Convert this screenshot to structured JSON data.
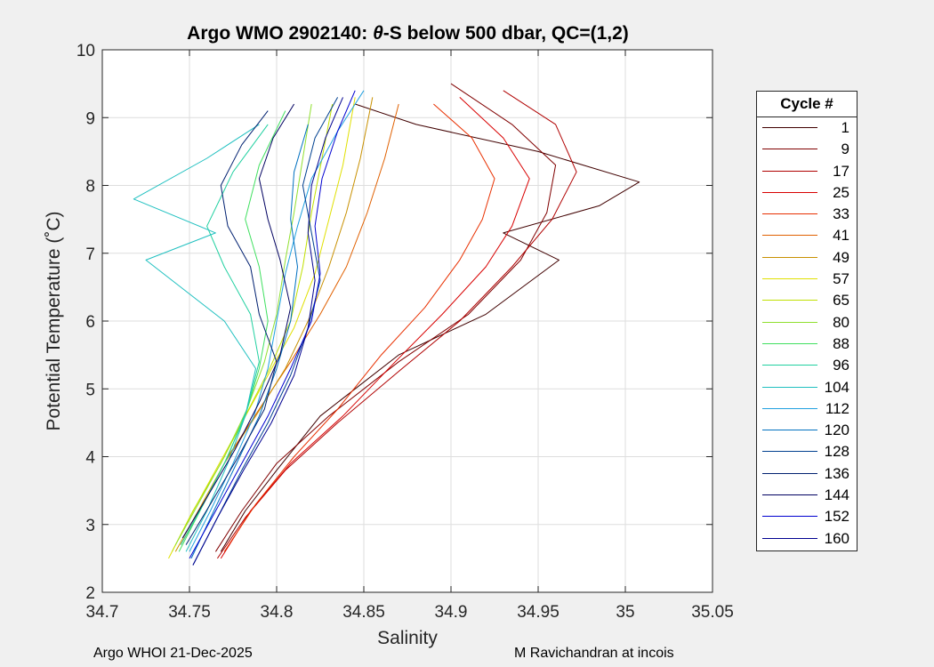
{
  "chart_data": {
    "type": "line",
    "title": "Argo WMO 2902140: θ-S below 500 dbar,  QC=(1,2)",
    "title_prefix": "Argo WMO 2902140: ",
    "title_theta": "θ",
    "title_suffix": "-S below 500 dbar,  QC=(1,2)",
    "xlabel": "Salinity",
    "ylabel": "Potential Temperature (˚C)",
    "xlim": [
      34.7,
      35.05
    ],
    "ylim": [
      2,
      10
    ],
    "x_ticks": [
      "34.7",
      "34.75",
      "34.8",
      "34.85",
      "34.9",
      "34.95",
      "35",
      "35.05"
    ],
    "y_ticks": [
      "2",
      "3",
      "4",
      "5",
      "6",
      "7",
      "8",
      "9",
      "10"
    ],
    "grid": true,
    "legend_title": "Cycle #",
    "legend_position": "right",
    "series": [
      {
        "name": "1",
        "color": "#400000",
        "x": [
          34.768,
          34.782,
          34.8,
          34.825,
          34.87,
          34.92,
          34.962,
          34.93,
          34.985,
          35.008,
          34.95,
          34.88,
          34.845
        ],
        "y": [
          2.6,
          3.2,
          3.8,
          4.6,
          5.5,
          6.1,
          6.9,
          7.3,
          7.7,
          8.05,
          8.5,
          8.9,
          9.2
        ]
      },
      {
        "name": "9",
        "color": "#800000",
        "x": [
          34.765,
          34.78,
          34.8,
          34.83,
          34.87,
          34.91,
          34.94,
          34.955,
          34.96,
          34.935,
          34.9
        ],
        "y": [
          2.6,
          3.2,
          3.9,
          4.6,
          5.4,
          6.1,
          6.9,
          7.6,
          8.3,
          8.9,
          9.5
        ]
      },
      {
        "name": "17",
        "color": "#b00000",
        "x": [
          34.766,
          34.782,
          34.805,
          34.835,
          34.872,
          34.905,
          34.935,
          34.958,
          34.972,
          34.96,
          34.93
        ],
        "y": [
          2.5,
          3.1,
          3.8,
          4.5,
          5.3,
          6.0,
          6.8,
          7.5,
          8.2,
          8.9,
          9.4
        ]
      },
      {
        "name": "25",
        "color": "#d80000",
        "x": [
          34.768,
          34.785,
          34.808,
          34.838,
          34.868,
          34.895,
          34.92,
          34.935,
          34.945,
          34.93,
          34.905
        ],
        "y": [
          2.5,
          3.2,
          3.9,
          4.6,
          5.4,
          6.1,
          6.8,
          7.4,
          8.1,
          8.7,
          9.3
        ]
      },
      {
        "name": "33",
        "color": "#e83000",
        "x": [
          34.77,
          34.788,
          34.81,
          34.835,
          34.86,
          34.885,
          34.905,
          34.918,
          34.925,
          34.912,
          34.89
        ],
        "y": [
          2.6,
          3.3,
          4.0,
          4.7,
          5.5,
          6.2,
          6.9,
          7.5,
          8.1,
          8.7,
          9.2
        ]
      },
      {
        "name": "41",
        "color": "#e06000",
        "x": [
          34.745,
          34.758,
          34.772,
          34.79,
          34.808,
          34.825,
          34.84,
          34.852,
          34.862,
          34.87
        ],
        "y": [
          2.7,
          3.3,
          4.0,
          4.7,
          5.4,
          6.1,
          6.8,
          7.6,
          8.4,
          9.2
        ]
      },
      {
        "name": "49",
        "color": "#c89000",
        "x": [
          34.742,
          34.755,
          34.77,
          34.788,
          34.805,
          34.818,
          34.83,
          34.84,
          34.848,
          34.855
        ],
        "y": [
          2.6,
          3.2,
          3.9,
          4.6,
          5.3,
          6.0,
          6.8,
          7.6,
          8.4,
          9.3
        ]
      },
      {
        "name": "57",
        "color": "#e0e000",
        "x": [
          34.738,
          34.75,
          34.765,
          34.78,
          34.795,
          34.81,
          34.822,
          34.83,
          34.838,
          34.845
        ],
        "y": [
          2.5,
          3.1,
          3.8,
          4.5,
          5.2,
          5.9,
          6.7,
          7.5,
          8.3,
          9.3
        ]
      },
      {
        "name": "65",
        "color": "#c0e000",
        "x": [
          34.74,
          34.752,
          34.768,
          34.782,
          34.796,
          34.808,
          34.815,
          34.82,
          34.826,
          34.832
        ],
        "y": [
          2.6,
          3.2,
          3.9,
          4.6,
          5.3,
          6.0,
          6.8,
          7.6,
          8.4,
          9.2
        ]
      },
      {
        "name": "80",
        "color": "#90e030",
        "x": [
          34.742,
          34.755,
          34.77,
          34.783,
          34.793,
          34.8,
          34.805,
          34.81,
          34.815,
          34.82
        ],
        "y": [
          2.7,
          3.3,
          4.0,
          4.7,
          5.4,
          6.1,
          6.9,
          7.6,
          8.4,
          9.2
        ]
      },
      {
        "name": "88",
        "color": "#40e060",
        "x": [
          34.744,
          34.756,
          34.77,
          34.782,
          34.79,
          34.795,
          34.79,
          34.782,
          34.79,
          34.805
        ],
        "y": [
          2.6,
          3.2,
          3.9,
          4.6,
          5.3,
          6.0,
          6.8,
          7.5,
          8.3,
          9.1
        ]
      },
      {
        "name": "96",
        "color": "#20d0a0",
        "x": [
          34.745,
          34.758,
          34.772,
          34.783,
          34.79,
          34.785,
          34.77,
          34.76,
          34.775,
          34.795
        ],
        "y": [
          2.7,
          3.3,
          4.0,
          4.7,
          5.4,
          6.1,
          6.8,
          7.4,
          8.2,
          8.9
        ]
      },
      {
        "name": "104",
        "color": "#20c0c0",
        "x": [
          34.748,
          34.76,
          34.772,
          34.782,
          34.788,
          34.77,
          34.725,
          34.765,
          34.718,
          34.76,
          34.79
        ],
        "y": [
          2.6,
          3.2,
          3.9,
          4.6,
          5.3,
          6.0,
          6.9,
          7.3,
          7.8,
          8.4,
          8.9
        ]
      },
      {
        "name": "112",
        "color": "#20a0e0",
        "x": [
          34.75,
          34.762,
          34.775,
          34.787,
          34.795,
          34.8,
          34.805,
          34.812,
          34.82,
          34.835,
          34.85
        ],
        "y": [
          2.6,
          3.2,
          3.9,
          4.6,
          5.3,
          6.0,
          6.7,
          7.4,
          8.1,
          8.8,
          9.4
        ]
      },
      {
        "name": "120",
        "color": "#0070c0",
        "x": [
          34.751,
          34.764,
          34.777,
          34.79,
          34.8,
          34.808,
          34.812,
          34.808,
          34.81,
          34.818
        ],
        "y": [
          2.5,
          3.2,
          3.9,
          4.6,
          5.3,
          6.0,
          6.8,
          7.5,
          8.2,
          8.9
        ]
      },
      {
        "name": "128",
        "color": "#004090",
        "x": [
          34.752,
          34.766,
          34.78,
          34.795,
          34.808,
          34.818,
          34.825,
          34.82,
          34.815,
          34.822,
          34.835
        ],
        "y": [
          2.4,
          3.1,
          3.8,
          4.5,
          5.2,
          5.9,
          6.6,
          7.3,
          8.0,
          8.7,
          9.3
        ]
      },
      {
        "name": "136",
        "color": "#002070",
        "x": [
          34.748,
          34.762,
          34.778,
          34.793,
          34.8,
          34.79,
          34.785,
          34.772,
          34.768,
          34.78,
          34.795
        ],
        "y": [
          2.7,
          3.3,
          4.0,
          4.7,
          5.4,
          6.1,
          6.8,
          7.4,
          8.0,
          8.6,
          9.1
        ]
      },
      {
        "name": "144",
        "color": "#000060",
        "x": [
          34.746,
          34.76,
          34.776,
          34.79,
          34.802,
          34.808,
          34.802,
          34.795,
          34.79,
          34.798,
          34.81
        ],
        "y": [
          2.8,
          3.4,
          4.1,
          4.8,
          5.5,
          6.2,
          6.9,
          7.5,
          8.1,
          8.7,
          9.2
        ]
      },
      {
        "name": "152",
        "color": "#0000d0",
        "x": [
          34.75,
          34.765,
          34.78,
          34.795,
          34.808,
          34.82,
          34.825,
          34.822,
          34.826,
          34.835,
          34.845
        ],
        "y": [
          2.5,
          3.2,
          3.9,
          4.6,
          5.3,
          6.0,
          6.7,
          7.4,
          8.1,
          8.8,
          9.4
        ]
      },
      {
        "name": "160",
        "color": "#000090",
        "x": [
          34.752,
          34.766,
          34.781,
          34.797,
          34.81,
          34.818,
          34.822,
          34.818,
          34.82,
          34.828,
          34.838
        ],
        "y": [
          2.4,
          3.1,
          3.8,
          4.5,
          5.2,
          5.9,
          6.6,
          7.3,
          8.0,
          8.7,
          9.3
        ]
      }
    ]
  },
  "footer": {
    "left": "Argo WHOI 21-Dec-2025",
    "right": "M Ravichandran at incois"
  }
}
